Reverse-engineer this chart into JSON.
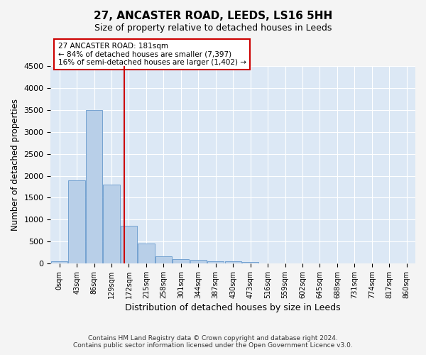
{
  "title": "27, ANCASTER ROAD, LEEDS, LS16 5HH",
  "subtitle": "Size of property relative to detached houses in Leeds",
  "xlabel": "Distribution of detached houses by size in Leeds",
  "ylabel": "Number of detached properties",
  "categories": [
    "0sqm",
    "43sqm",
    "86sqm",
    "129sqm",
    "172sqm",
    "215sqm",
    "258sqm",
    "301sqm",
    "344sqm",
    "387sqm",
    "430sqm",
    "473sqm",
    "516sqm",
    "559sqm",
    "602sqm",
    "645sqm",
    "688sqm",
    "731sqm",
    "774sqm",
    "817sqm",
    "860sqm"
  ],
  "values": [
    50,
    1900,
    3500,
    1800,
    850,
    460,
    160,
    90,
    75,
    50,
    40,
    30,
    5,
    2,
    1,
    0,
    0,
    0,
    0,
    0,
    0
  ],
  "bar_color": "#b8cfe8",
  "bar_edge_color": "#6699cc",
  "vline_color": "#cc0000",
  "annotation_text": "27 ANCASTER ROAD: 181sqm\n← 84% of detached houses are smaller (7,397)\n16% of semi-detached houses are larger (1,402) →",
  "annotation_box_color": "#ffffff",
  "annotation_box_edge": "#cc0000",
  "ylim": [
    0,
    4500
  ],
  "yticks": [
    0,
    500,
    1000,
    1500,
    2000,
    2500,
    3000,
    3500,
    4000,
    4500
  ],
  "background_color": "#dce8f5",
  "footer_line1": "Contains HM Land Registry data © Crown copyright and database right 2024.",
  "footer_line2": "Contains public sector information licensed under the Open Government Licence v3.0.",
  "fig_bgcolor": "#f4f4f4"
}
